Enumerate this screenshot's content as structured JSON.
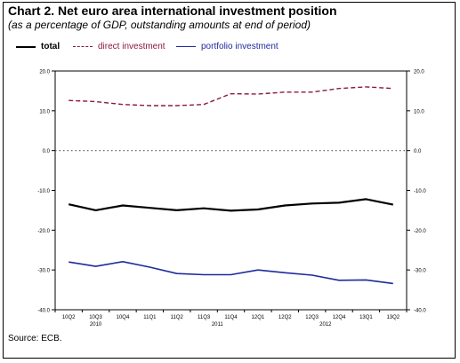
{
  "title": "Chart 2. Net euro area international investment position",
  "subtitle": "(as a percentage of GDP, outstanding amounts at end of period)",
  "source": "Source: ECB.",
  "legend": {
    "total": "total",
    "direct": "direct investment",
    "portfolio": "portfolio investment"
  },
  "colors": {
    "total": "#000000",
    "direct": "#8b1a3a",
    "portfolio": "#1f2a9c",
    "zero": "#555555"
  },
  "chart_data": {
    "type": "line",
    "title": "Chart 2. Net euro area international investment position",
    "categories": [
      "10Q2",
      "10Q3",
      "10Q4",
      "11Q1",
      "11Q2",
      "11Q3",
      "11Q4",
      "12Q1",
      "12Q2",
      "12Q3",
      "12Q4",
      "13Q1",
      "13Q2"
    ],
    "year_labels": [
      {
        "label": "2010",
        "at": 1
      },
      {
        "label": "2011",
        "at": 5.5
      },
      {
        "label": "2012",
        "at": 9.5
      }
    ],
    "ylim": [
      -40,
      20
    ],
    "yticks": [
      20,
      10,
      0,
      -10,
      -20,
      -30,
      -40
    ],
    "ytick_labels": [
      "20.0",
      "10.0",
      "0.0",
      "-10.0",
      "-20.0",
      "-30.0",
      "-40.0"
    ],
    "ytick_labels_right": [
      "20.0",
      "10.0",
      "0.0",
      "-10.0",
      "-20.0",
      "-30.0",
      "-40.0"
    ],
    "zero_line": "dotted",
    "legend_position": "top-left",
    "series": [
      {
        "name": "total",
        "style": "solid-bold",
        "values": [
          -13.5,
          -15.0,
          -13.8,
          -14.4,
          -15.0,
          -14.5,
          -15.1,
          -14.8,
          -13.8,
          -13.3,
          -13.1,
          -12.2,
          -13.6
        ]
      },
      {
        "name": "direct investment",
        "style": "dashed",
        "values": [
          12.6,
          12.3,
          11.6,
          11.3,
          11.3,
          11.6,
          14.3,
          14.2,
          14.7,
          14.7,
          15.6,
          16.0,
          15.6
        ]
      },
      {
        "name": "portfolio investment",
        "style": "solid",
        "values": [
          -28.0,
          -29.1,
          -27.9,
          -29.3,
          -30.9,
          -31.2,
          -31.2,
          -30.0,
          -30.7,
          -31.3,
          -32.6,
          -32.5,
          -33.4
        ]
      }
    ]
  }
}
